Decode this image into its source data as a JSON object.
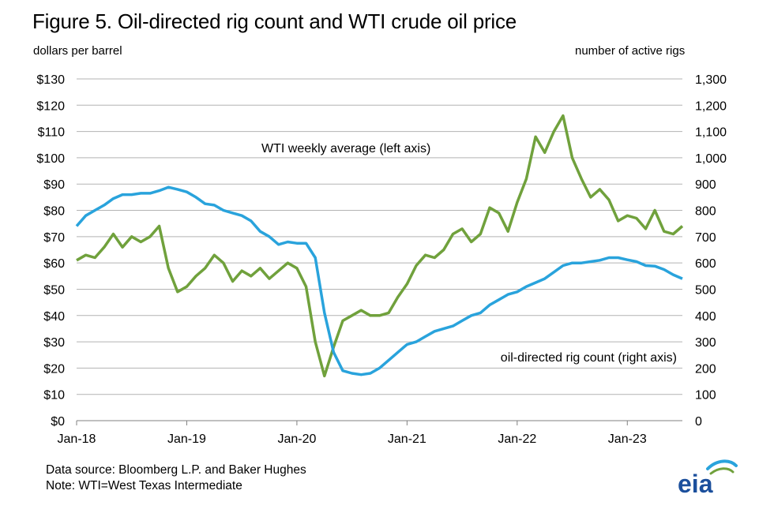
{
  "title": "Figure 5. Oil-directed rig count and WTI crude oil price",
  "left_axis_unit": "dollars per barrel",
  "right_axis_unit": "number of active rigs",
  "source": "Data source: Bloomberg L.P. and Baker Hughes",
  "note": "Note: WTI=West Texas Intermediate",
  "logo_text": "eia",
  "colors": {
    "wti": "#70a13c",
    "rigs": "#29a3dc",
    "grid": "#b3b3b3",
    "logo": "#1b4f9c"
  },
  "chart_data": {
    "type": "line",
    "x_unit": "month",
    "x_ticks": [
      "Jan-18",
      "Jan-19",
      "Jan-20",
      "Jan-21",
      "Jan-22",
      "Jan-23"
    ],
    "xlim": [
      "2018-01",
      "2023-07"
    ],
    "y_left": {
      "ticks": [
        "$0",
        "$10",
        "$20",
        "$30",
        "$40",
        "$50",
        "$60",
        "$70",
        "$80",
        "$90",
        "$100",
        "$110",
        "$120",
        "$130"
      ],
      "lim": [
        0,
        130
      ]
    },
    "y_right": {
      "ticks": [
        "0",
        "100",
        "200",
        "300",
        "400",
        "500",
        "600",
        "700",
        "800",
        "900",
        "1,000",
        "1,100",
        "1,200",
        "1,300"
      ],
      "lim": [
        0,
        1300
      ]
    },
    "grid": true,
    "annotations": [
      {
        "text": "WTI weekly average (left axis)",
        "series": "wti"
      },
      {
        "text": "oil-directed rig count (right axis)",
        "series": "rigs"
      }
    ],
    "series": [
      {
        "key": "wti",
        "axis": "left",
        "points": [
          [
            "2018-01",
            61
          ],
          [
            "2018-02",
            63
          ],
          [
            "2018-03",
            62
          ],
          [
            "2018-04",
            66
          ],
          [
            "2018-05",
            71
          ],
          [
            "2018-06",
            66
          ],
          [
            "2018-07",
            70
          ],
          [
            "2018-08",
            68
          ],
          [
            "2018-09",
            70
          ],
          [
            "2018-10",
            74
          ],
          [
            "2018-11",
            58
          ],
          [
            "2018-12",
            49
          ],
          [
            "2019-01",
            51
          ],
          [
            "2019-02",
            55
          ],
          [
            "2019-03",
            58
          ],
          [
            "2019-04",
            63
          ],
          [
            "2019-05",
            60
          ],
          [
            "2019-06",
            53
          ],
          [
            "2019-07",
            57
          ],
          [
            "2019-08",
            55
          ],
          [
            "2019-09",
            58
          ],
          [
            "2019-10",
            54
          ],
          [
            "2019-11",
            57
          ],
          [
            "2019-12",
            60
          ],
          [
            "2020-01",
            58
          ],
          [
            "2020-02",
            51
          ],
          [
            "2020-03",
            30
          ],
          [
            "2020-04",
            17
          ],
          [
            "2020-05",
            28
          ],
          [
            "2020-06",
            38
          ],
          [
            "2020-07",
            40
          ],
          [
            "2020-08",
            42
          ],
          [
            "2020-09",
            40
          ],
          [
            "2020-10",
            40
          ],
          [
            "2020-11",
            41
          ],
          [
            "2020-12",
            47
          ],
          [
            "2021-01",
            52
          ],
          [
            "2021-02",
            59
          ],
          [
            "2021-03",
            63
          ],
          [
            "2021-04",
            62
          ],
          [
            "2021-05",
            65
          ],
          [
            "2021-06",
            71
          ],
          [
            "2021-07",
            73
          ],
          [
            "2021-08",
            68
          ],
          [
            "2021-09",
            71
          ],
          [
            "2021-10",
            81
          ],
          [
            "2021-11",
            79
          ],
          [
            "2021-12",
            72
          ],
          [
            "2022-01",
            83
          ],
          [
            "2022-02",
            92
          ],
          [
            "2022-03",
            108
          ],
          [
            "2022-04",
            102
          ],
          [
            "2022-05",
            110
          ],
          [
            "2022-06",
            116
          ],
          [
            "2022-07",
            100
          ],
          [
            "2022-08",
            92
          ],
          [
            "2022-09",
            85
          ],
          [
            "2022-10",
            88
          ],
          [
            "2022-11",
            84
          ],
          [
            "2022-12",
            76
          ],
          [
            "2023-01",
            78
          ],
          [
            "2023-02",
            77
          ],
          [
            "2023-03",
            73
          ],
          [
            "2023-04",
            80
          ],
          [
            "2023-05",
            72
          ],
          [
            "2023-06",
            71
          ],
          [
            "2023-07",
            74
          ]
        ]
      },
      {
        "key": "rigs",
        "axis": "right",
        "points": [
          [
            "2018-01",
            740
          ],
          [
            "2018-02",
            780
          ],
          [
            "2018-03",
            800
          ],
          [
            "2018-04",
            820
          ],
          [
            "2018-05",
            845
          ],
          [
            "2018-06",
            860
          ],
          [
            "2018-07",
            860
          ],
          [
            "2018-08",
            865
          ],
          [
            "2018-09",
            865
          ],
          [
            "2018-10",
            875
          ],
          [
            "2018-11",
            888
          ],
          [
            "2018-12",
            880
          ],
          [
            "2019-01",
            870
          ],
          [
            "2019-02",
            850
          ],
          [
            "2019-03",
            825
          ],
          [
            "2019-04",
            820
          ],
          [
            "2019-05",
            800
          ],
          [
            "2019-06",
            790
          ],
          [
            "2019-07",
            780
          ],
          [
            "2019-08",
            760
          ],
          [
            "2019-09",
            720
          ],
          [
            "2019-10",
            700
          ],
          [
            "2019-11",
            670
          ],
          [
            "2019-12",
            680
          ],
          [
            "2020-01",
            675
          ],
          [
            "2020-02",
            675
          ],
          [
            "2020-03",
            620
          ],
          [
            "2020-04",
            410
          ],
          [
            "2020-05",
            260
          ],
          [
            "2020-06",
            190
          ],
          [
            "2020-07",
            180
          ],
          [
            "2020-08",
            175
          ],
          [
            "2020-09",
            180
          ],
          [
            "2020-10",
            200
          ],
          [
            "2020-11",
            230
          ],
          [
            "2020-12",
            260
          ],
          [
            "2021-01",
            290
          ],
          [
            "2021-02",
            300
          ],
          [
            "2021-03",
            320
          ],
          [
            "2021-04",
            340
          ],
          [
            "2021-05",
            350
          ],
          [
            "2021-06",
            360
          ],
          [
            "2021-07",
            380
          ],
          [
            "2021-08",
            400
          ],
          [
            "2021-09",
            410
          ],
          [
            "2021-10",
            440
          ],
          [
            "2021-11",
            460
          ],
          [
            "2021-12",
            480
          ],
          [
            "2022-01",
            490
          ],
          [
            "2022-02",
            510
          ],
          [
            "2022-03",
            525
          ],
          [
            "2022-04",
            540
          ],
          [
            "2022-05",
            565
          ],
          [
            "2022-06",
            590
          ],
          [
            "2022-07",
            600
          ],
          [
            "2022-08",
            600
          ],
          [
            "2022-09",
            605
          ],
          [
            "2022-10",
            610
          ],
          [
            "2022-11",
            620
          ],
          [
            "2022-12",
            620
          ],
          [
            "2023-01",
            612
          ],
          [
            "2023-02",
            605
          ],
          [
            "2023-03",
            590
          ],
          [
            "2023-04",
            588
          ],
          [
            "2023-05",
            575
          ],
          [
            "2023-06",
            555
          ],
          [
            "2023-07",
            540
          ]
        ]
      }
    ]
  }
}
